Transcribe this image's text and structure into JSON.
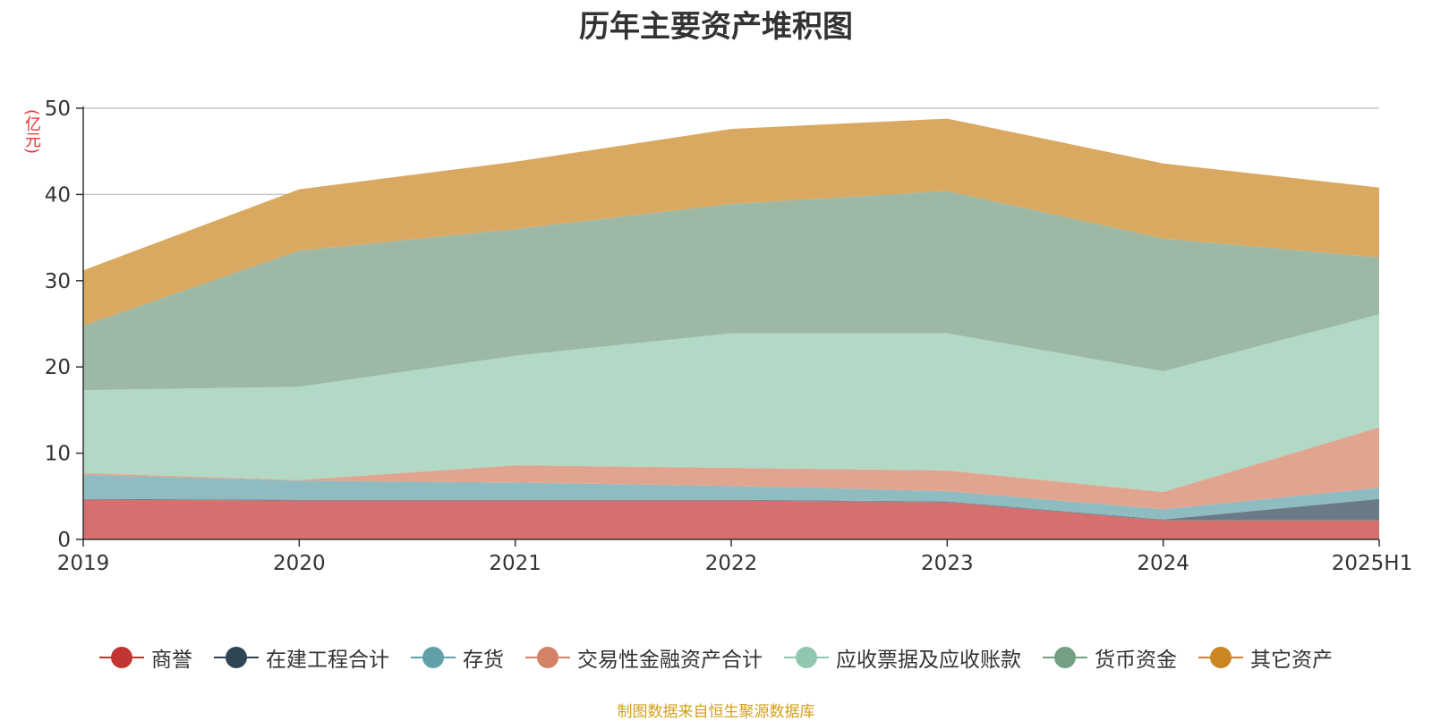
{
  "chart_data": {
    "type": "area",
    "stacked": true,
    "title": "历年主要资产堆积图",
    "ylabel": "(亿元)",
    "source": "制图数据来自恒生聚源数据库",
    "categories": [
      "2019",
      "2020",
      "2021",
      "2022",
      "2023",
      "2024",
      "2025H1"
    ],
    "ylim": [
      0,
      50
    ],
    "yticks": [
      0,
      10,
      20,
      30,
      40,
      50
    ],
    "grid": true,
    "legend_position": "bottom",
    "series": [
      {
        "name": "商誉",
        "color": "#c23531",
        "area_color": "#d5706e",
        "values": [
          4.6,
          4.5,
          4.5,
          4.5,
          4.3,
          2.2,
          2.2
        ]
      },
      {
        "name": "在建工程合计",
        "color": "#2f4554",
        "area_color": "#6b7b86",
        "values": [
          0.1,
          0.1,
          0.1,
          0.1,
          0.1,
          0.1,
          2.5
        ]
      },
      {
        "name": "存货",
        "color": "#61a0a8",
        "area_color": "#8fbcc1",
        "values": [
          2.8,
          2.2,
          2.0,
          1.6,
          1.2,
          1.2,
          1.3
        ]
      },
      {
        "name": "交易性金融资产合计",
        "color": "#d48265",
        "area_color": "#e0a48f",
        "values": [
          0.2,
          0.1,
          2.0,
          2.1,
          2.4,
          2.0,
          7.0
        ]
      },
      {
        "name": "应收票据及应收账款",
        "color": "#91c7ae",
        "area_color": "#b2d8c6",
        "values": [
          9.6,
          10.8,
          12.7,
          15.6,
          15.9,
          14.0,
          13.1
        ]
      },
      {
        "name": "货币资金",
        "color": "#749f83",
        "area_color": "#9db9a5",
        "values": [
          7.5,
          15.8,
          14.7,
          15.0,
          16.5,
          15.4,
          6.6
        ]
      },
      {
        "name": "其它资产",
        "color": "#ca8622",
        "area_color": "#d9a961",
        "values": [
          6.4,
          7.1,
          7.8,
          8.7,
          8.4,
          8.7,
          8.1
        ]
      }
    ]
  }
}
